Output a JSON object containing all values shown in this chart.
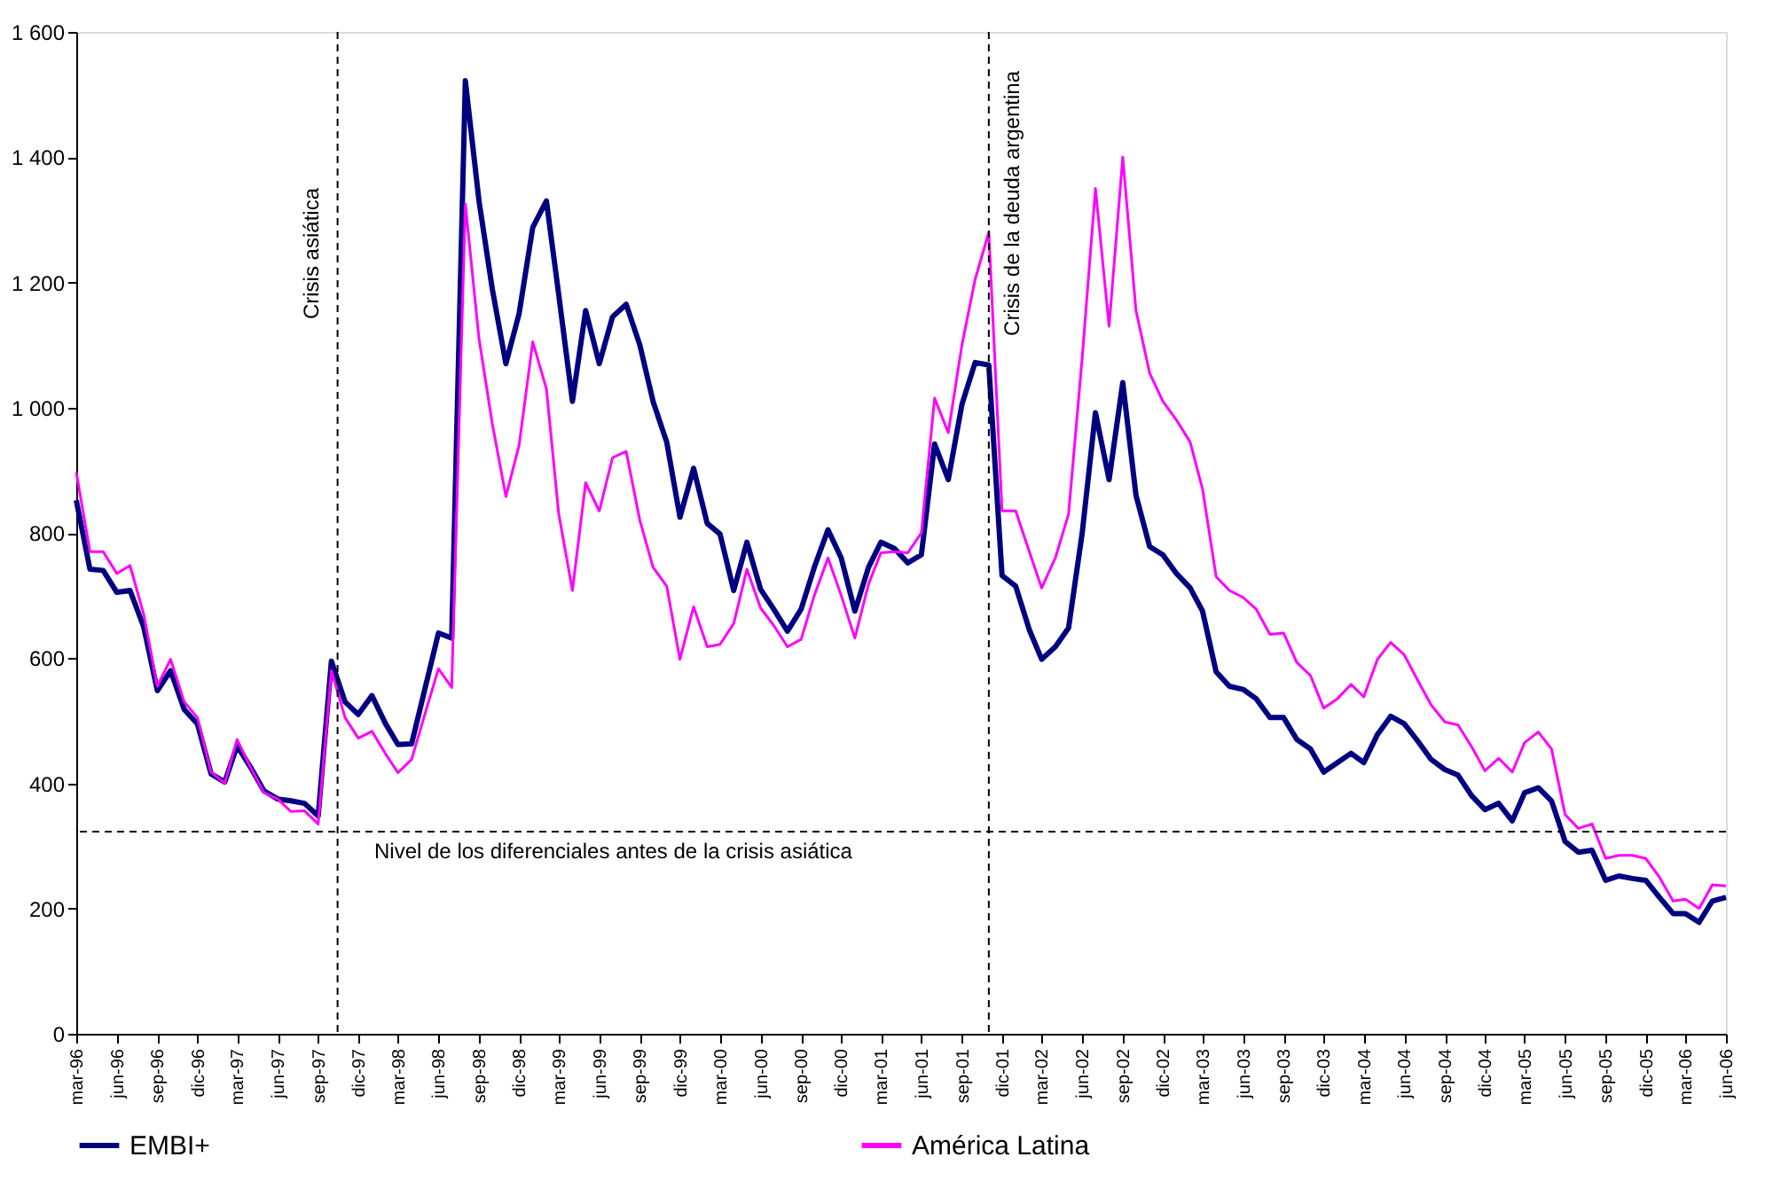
{
  "chart_data": {
    "type": "line",
    "x": [
      "1996-03",
      "1996-04",
      "1996-05",
      "1996-06",
      "1996-07",
      "1996-08",
      "1996-09",
      "1996-10",
      "1996-11",
      "1996-12",
      "1997-01",
      "1997-02",
      "1997-03",
      "1997-04",
      "1997-05",
      "1997-06",
      "1997-07",
      "1997-08",
      "1997-09",
      "1997-10",
      "1997-11",
      "1997-12",
      "1998-01",
      "1998-02",
      "1998-03",
      "1998-04",
      "1998-05",
      "1998-06",
      "1998-07",
      "1998-08",
      "1998-09",
      "1998-10",
      "1998-11",
      "1998-12",
      "1999-01",
      "1999-02",
      "1999-03",
      "1999-04",
      "1999-05",
      "1999-06",
      "1999-07",
      "1999-08",
      "1999-09",
      "1999-10",
      "1999-11",
      "1999-12",
      "2000-01",
      "2000-02",
      "2000-03",
      "2000-04",
      "2000-05",
      "2000-06",
      "2000-07",
      "2000-08",
      "2000-09",
      "2000-10",
      "2000-11",
      "2000-12",
      "2001-01",
      "2001-02",
      "2001-03",
      "2001-04",
      "2001-05",
      "2001-06",
      "2001-07",
      "2001-08",
      "2001-09",
      "2001-10",
      "2001-11",
      "2001-12",
      "2002-01",
      "2002-02",
      "2002-03",
      "2002-04",
      "2002-05",
      "2002-06",
      "2002-07",
      "2002-08",
      "2002-09",
      "2002-10",
      "2002-11",
      "2002-12",
      "2003-01",
      "2003-02",
      "2003-03",
      "2003-04",
      "2003-05",
      "2003-06",
      "2003-07",
      "2003-08",
      "2003-09",
      "2003-10",
      "2003-11",
      "2003-12",
      "2004-01",
      "2004-02",
      "2004-03",
      "2004-04",
      "2004-05",
      "2004-06",
      "2004-07",
      "2004-08",
      "2004-09",
      "2004-10",
      "2004-11",
      "2004-12",
      "2005-01",
      "2005-02",
      "2005-03",
      "2005-04",
      "2005-05",
      "2005-06",
      "2005-07",
      "2005-08",
      "2005-09",
      "2005-10",
      "2005-11",
      "2005-12",
      "2006-01",
      "2006-02",
      "2006-03",
      "2006-04",
      "2006-05",
      "2006-06"
    ],
    "series": [
      {
        "name": "EMBI+",
        "color": "#000080",
        "values": [
          852,
          742,
          740,
          705,
          708,
          650,
          548,
          580,
          518,
          495,
          415,
          402,
          460,
          425,
          388,
          375,
          372,
          368,
          348,
          595,
          530,
          510,
          540,
          495,
          462,
          463,
          550,
          640,
          632,
          1522,
          1330,
          1190,
          1070,
          1150,
          1288,
          1330,
          1180,
          1010,
          1155,
          1070,
          1145,
          1165,
          1100,
          1010,
          945,
          825,
          903,
          815,
          798,
          708,
          785,
          710,
          678,
          643,
          678,
          745,
          805,
          760,
          675,
          745,
          785,
          775,
          752,
          765,
          942,
          885,
          1005,
          1072,
          1068,
          732,
          715,
          645,
          598,
          618,
          648,
          800,
          992,
          885,
          1040,
          860,
          778,
          765,
          735,
          712,
          675,
          578,
          555,
          550,
          535,
          505,
          505,
          470,
          455,
          418,
          433,
          448,
          433,
          478,
          507,
          495,
          468,
          438,
          422,
          413,
          380,
          358,
          368,
          340,
          385,
          393,
          372,
          307,
          290,
          293,
          245,
          252,
          248,
          245,
          218,
          192,
          192,
          178,
          212,
          218
        ]
      },
      {
        "name": "América Latina",
        "color": "#ff00ff",
        "values": [
          897,
          770,
          770,
          735,
          748,
          670,
          555,
          598,
          530,
          505,
          418,
          400,
          470,
          425,
          385,
          375,
          355,
          356,
          335,
          580,
          505,
          472,
          483,
          447,
          417,
          438,
          510,
          583,
          553,
          1325,
          1110,
          975,
          858,
          940,
          1105,
          1030,
          830,
          708,
          880,
          835,
          920,
          930,
          820,
          745,
          715,
          598,
          682,
          618,
          622,
          655,
          742,
          680,
          652,
          618,
          630,
          700,
          760,
          700,
          632,
          718,
          768,
          770,
          768,
          800,
          1015,
          960,
          1100,
          1205,
          1280,
          835,
          835,
          770,
          712,
          760,
          830,
          1080,
          1350,
          1130,
          1400,
          1155,
          1055,
          1010,
          980,
          945,
          870,
          730,
          708,
          697,
          678,
          638,
          640,
          593,
          572,
          520,
          535,
          558,
          538,
          598,
          625,
          605,
          565,
          525,
          498,
          493,
          458,
          420,
          440,
          418,
          465,
          482,
          455,
          350,
          328,
          335,
          280,
          285,
          285,
          280,
          250,
          212,
          215,
          200,
          238,
          236
        ]
      }
    ],
    "xlim": [
      "1996-03",
      "2006-06"
    ],
    "xticks": [
      {
        "value": "1996-03",
        "label": "mar-96"
      },
      {
        "value": "1996-06",
        "label": "jun-96"
      },
      {
        "value": "1996-09",
        "label": "sep-96"
      },
      {
        "value": "1996-12",
        "label": "dic-96"
      },
      {
        "value": "1997-03",
        "label": "mar-97"
      },
      {
        "value": "1997-06",
        "label": "jun-97"
      },
      {
        "value": "1997-09",
        "label": "sep-97"
      },
      {
        "value": "1997-12",
        "label": "dic-97"
      },
      {
        "value": "1998-03",
        "label": "mar-98"
      },
      {
        "value": "1998-06",
        "label": "jun-98"
      },
      {
        "value": "1998-09",
        "label": "sep-98"
      },
      {
        "value": "1998-12",
        "label": "dic-98"
      },
      {
        "value": "1999-03",
        "label": "mar-99"
      },
      {
        "value": "1999-06",
        "label": "jun-99"
      },
      {
        "value": "1999-09",
        "label": "sep-99"
      },
      {
        "value": "1999-12",
        "label": "dic-99"
      },
      {
        "value": "2000-03",
        "label": "mar-00"
      },
      {
        "value": "2000-06",
        "label": "jun-00"
      },
      {
        "value": "2000-09",
        "label": "sep-00"
      },
      {
        "value": "2000-12",
        "label": "dic-00"
      },
      {
        "value": "2001-03",
        "label": "mar-01"
      },
      {
        "value": "2001-06",
        "label": "jun-01"
      },
      {
        "value": "2001-09",
        "label": "sep-01"
      },
      {
        "value": "2001-12",
        "label": "dic-01"
      },
      {
        "value": "2002-03",
        "label": "mar-02"
      },
      {
        "value": "2002-06",
        "label": "jun-02"
      },
      {
        "value": "2002-09",
        "label": "sep-02"
      },
      {
        "value": "2002-12",
        "label": "dic-02"
      },
      {
        "value": "2003-03",
        "label": "mar-03"
      },
      {
        "value": "2003-06",
        "label": "jun-03"
      },
      {
        "value": "2003-09",
        "label": "sep-03"
      },
      {
        "value": "2003-12",
        "label": "dic-03"
      },
      {
        "value": "2004-03",
        "label": "mar-04"
      },
      {
        "value": "2004-06",
        "label": "jun-04"
      },
      {
        "value": "2004-09",
        "label": "sep-04"
      },
      {
        "value": "2004-12",
        "label": "dic-04"
      },
      {
        "value": "2005-03",
        "label": "mar-05"
      },
      {
        "value": "2005-06",
        "label": "jun-05"
      },
      {
        "value": "2005-09",
        "label": "sep-05"
      },
      {
        "value": "2005-12",
        "label": "dic-05"
      },
      {
        "value": "2006-03",
        "label": "mar-06"
      },
      {
        "value": "2006-06",
        "label": "jun-06"
      }
    ],
    "ylim": [
      0,
      1600
    ],
    "yticks": [
      0,
      200,
      400,
      600,
      800,
      {
        "value": 1000,
        "label": "1 000"
      },
      {
        "value": 1200,
        "label": "1 200"
      },
      {
        "value": 1400,
        "label": "1 400"
      },
      {
        "value": 1600,
        "label": "1 600"
      }
    ],
    "ref_lines": [
      {
        "axis": "x",
        "value": "1997-10-15",
        "label": "Crisis asiática",
        "color": "#000000",
        "line_style": "dashed"
      },
      {
        "axis": "x",
        "value": "2001-11",
        "label": "Crisis de la deuda argentina",
        "color": "#000000",
        "line_style": "dashed"
      },
      {
        "axis": "y",
        "value": 323,
        "label": "Nivel de los diferenciales antes de la crisis asiática",
        "color": "#000000",
        "line_style": "dashed"
      }
    ],
    "grid": false,
    "legend": "bottom",
    "marker": "none",
    "line_style": "solid"
  }
}
